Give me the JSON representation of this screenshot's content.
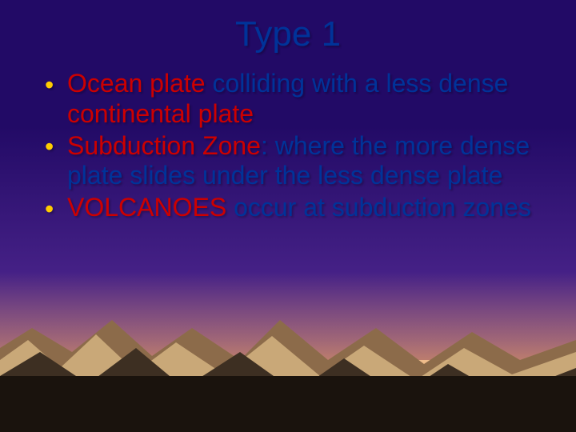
{
  "slide": {
    "title": "Type 1",
    "title_color": "#003399",
    "bullet_color": "#ffcc00",
    "bullets": [
      {
        "segments": [
          {
            "text": "Ocean plate",
            "color": "#cc0000"
          },
          {
            "text": " colliding with a less dense ",
            "color": "#003399"
          },
          {
            "text": "continental plate",
            "color": "#cc0000"
          }
        ]
      },
      {
        "segments": [
          {
            "text": "Subduction Zone",
            "color": "#cc0000"
          },
          {
            "text": ": where the more dense plate slides under the less dense plate",
            "color": "#003399"
          }
        ]
      },
      {
        "segments": [
          {
            "text": "VOLCANOES",
            "color": "#cc0000"
          },
          {
            "text": " occur at subduction zones",
            "color": "#003399"
          }
        ]
      }
    ]
  },
  "background": {
    "sky_top": "#220a66",
    "sky_bottom": "#5a2e99",
    "horizon_glow": "#e8a05a",
    "mountain_light": "#c9a878",
    "mountain_mid": "#8c6b4a",
    "mountain_dark": "#3d2f22",
    "ground": "#1a130d"
  }
}
